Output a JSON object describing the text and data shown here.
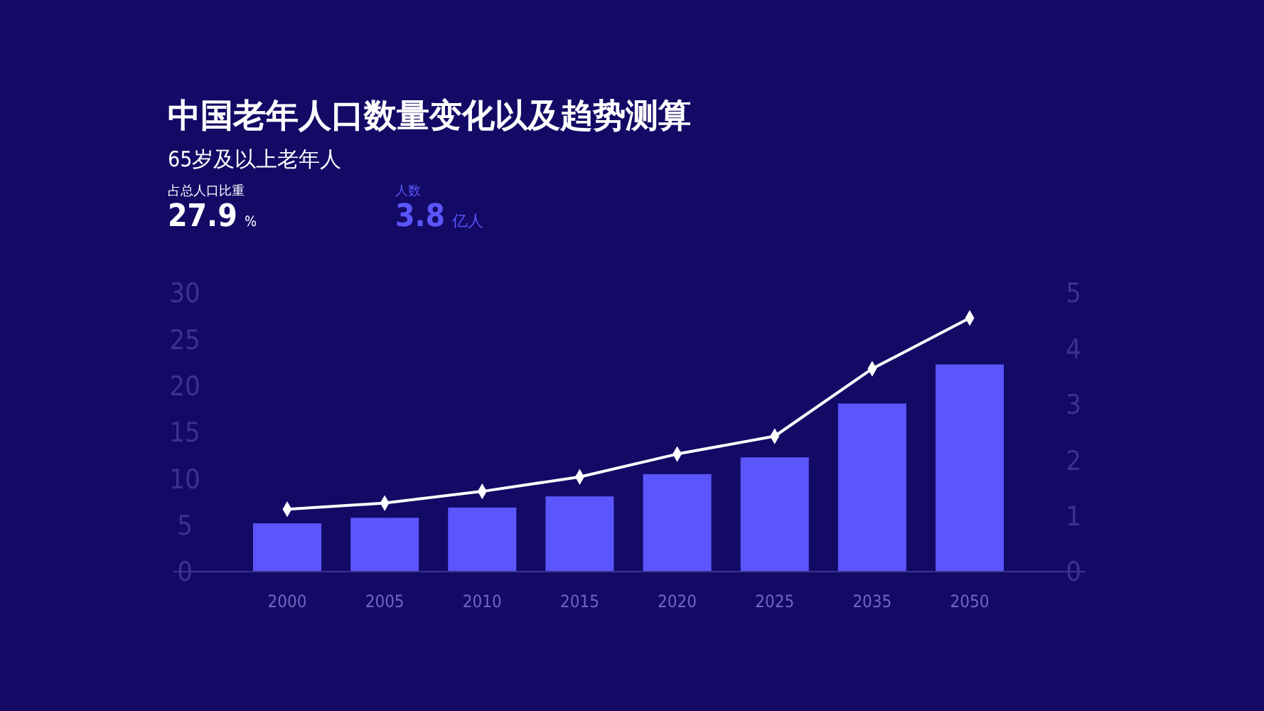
{
  "chart_data": {
    "type": "bar",
    "title": "中国老年人口数量变化以及趋势测算",
    "subtitle": "65岁及以上老年人",
    "annotations": [
      "占总人口比重",
      "27.9",
      "%",
      "人数",
      "3.8",
      "亿人"
    ],
    "categories": [
      "2000",
      "2005",
      "2010",
      "2015",
      "2020",
      "2025",
      "2035",
      "2050"
    ],
    "series": [
      {
        "color": "#5b55fc",
        "values": [
          5.2,
          5.8,
          6.9,
          8.1,
          10.5,
          12.3,
          18.1,
          22.3
        ]
      },
      {
        "type": "line",
        "axis": "y2",
        "color": "#ffffff",
        "values": [
          1.12,
          1.23,
          1.44,
          1.7,
          2.11,
          2.43,
          3.64,
          4.55
        ]
      }
    ],
    "ylim": [
      0,
      30
    ],
    "yticks": [
      0,
      5,
      10,
      15,
      20,
      25,
      30
    ],
    "y2lim": [
      0,
      5
    ],
    "y2ticks": [
      0,
      1,
      2,
      3,
      4,
      5
    ],
    "marker": "diamond",
    "grid": false
  }
}
